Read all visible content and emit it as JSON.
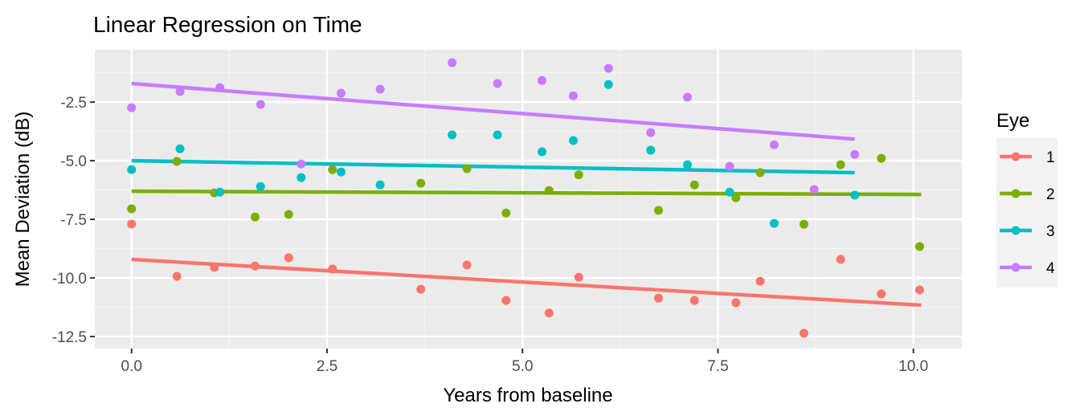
{
  "chart_data": {
    "type": "scatter",
    "title": "Linear Regression on Time",
    "xlabel": "Years from baseline",
    "ylabel": "Mean Deviation (dB)",
    "xlim": [
      -0.47,
      10.62
    ],
    "ylim": [
      -13.01,
      -0.27
    ],
    "xticks": [
      0,
      2.5,
      5,
      7.5,
      10
    ],
    "xtick_labels": [
      "0.0",
      "2.5",
      "5.0",
      "7.5",
      "10.0"
    ],
    "yticks": [
      -2.5,
      -5,
      -7.5,
      -10,
      -12.5
    ],
    "ytick_labels": [
      "-2.5",
      "-5.0",
      "-7.5",
      "-10.0",
      "-12.5"
    ],
    "grid": true,
    "legend": {
      "title": "Eye",
      "placement": "right"
    },
    "series": [
      {
        "name": "1",
        "color": "#F8766D",
        "x": [
          0,
          0.58,
          1.06,
          1.58,
          2.01,
          2.57,
          3.7,
          4.29,
          4.79,
          5.34,
          5.72,
          6.74,
          7.2,
          7.73,
          8.04,
          8.6,
          9.07,
          9.59,
          10.08
        ],
        "y": [
          -7.7,
          -9.93,
          -9.55,
          -9.49,
          -9.14,
          -9.62,
          -10.48,
          -9.45,
          -10.96,
          -11.5,
          -9.97,
          -10.86,
          -10.96,
          -11.06,
          -10.14,
          -12.36,
          -9.21,
          -10.68,
          -10.51
        ],
        "fit": {
          "x": [
            0,
            10.1
          ],
          "y": [
            -9.21,
            -11.16
          ]
        }
      },
      {
        "name": "2",
        "color": "#7CAE00",
        "x": [
          0,
          0.58,
          1.06,
          1.58,
          2.01,
          2.57,
          3.7,
          4.29,
          4.79,
          5.34,
          5.72,
          6.74,
          7.2,
          7.73,
          8.04,
          8.6,
          9.07,
          9.59,
          10.08
        ],
        "y": [
          -7.05,
          -5.03,
          -6.37,
          -7.4,
          -7.29,
          -5.38,
          -5.96,
          -5.34,
          -7.23,
          -6.27,
          -5.6,
          -7.12,
          -6.03,
          -6.58,
          -5.51,
          -7.71,
          -5.17,
          -4.9,
          -8.66
        ],
        "fit": {
          "x": [
            0,
            10.1
          ],
          "y": [
            -6.3,
            -6.44
          ]
        }
      },
      {
        "name": "3",
        "color": "#00BFC4",
        "x": [
          0,
          0.62,
          1.13,
          1.65,
          2.17,
          2.68,
          3.18,
          4.1,
          4.68,
          5.25,
          5.65,
          6.1,
          6.64,
          7.11,
          7.65,
          8.22,
          9.25
        ],
        "y": [
          -5.38,
          -4.49,
          -6.34,
          -6.1,
          -5.72,
          -5.48,
          -6.03,
          -3.9,
          -3.9,
          -4.62,
          -4.14,
          -1.75,
          -4.55,
          -5.17,
          -6.34,
          -7.67,
          -6.47
        ],
        "fit": {
          "x": [
            0,
            9.25
          ],
          "y": [
            -5.0,
            -5.51
          ]
        }
      },
      {
        "name": "4",
        "color": "#C77CFF",
        "x": [
          0,
          0.62,
          1.13,
          1.65,
          2.17,
          2.68,
          3.18,
          4.1,
          4.68,
          5.25,
          5.65,
          6.1,
          6.64,
          7.11,
          7.65,
          8.22,
          8.73,
          9.25
        ],
        "y": [
          -2.74,
          -2.05,
          -1.88,
          -2.6,
          -5.14,
          -2.12,
          -1.95,
          -0.82,
          -1.71,
          -1.58,
          -2.23,
          -1.06,
          -3.8,
          -2.29,
          -5.24,
          -4.32,
          -6.23,
          -4.73
        ],
        "fit": {
          "x": [
            0,
            9.25
          ],
          "y": [
            -1.71,
            -4.08
          ]
        }
      }
    ]
  }
}
